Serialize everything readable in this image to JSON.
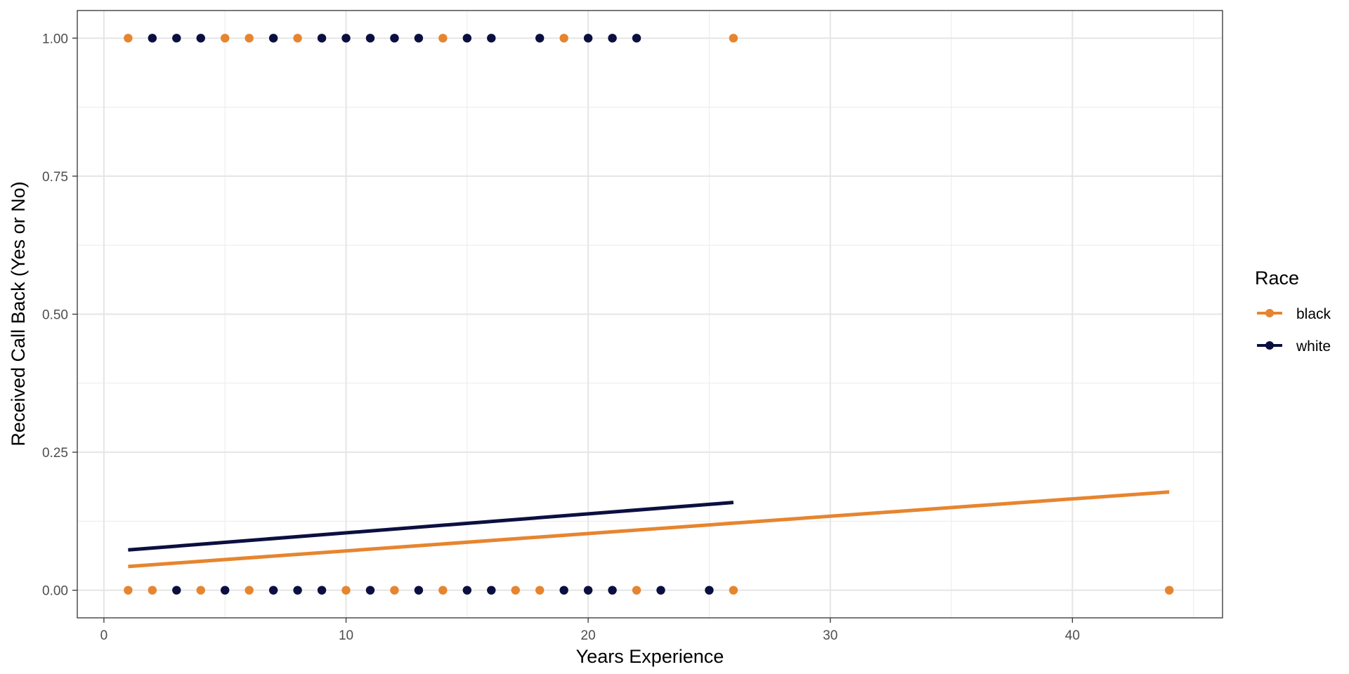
{
  "chart_data": {
    "type": "scatter",
    "title": "",
    "xlabel": "Years Experience",
    "ylabel": "Received Call Back (Yes or No)",
    "xlim": [
      -1.1,
      46.2
    ],
    "ylim": [
      -0.05,
      1.05
    ],
    "x_ticks": [
      0,
      10,
      20,
      30,
      40
    ],
    "x_tick_labels": [
      "0",
      "10",
      "20",
      "30",
      "40"
    ],
    "y_ticks": [
      0,
      0.25,
      0.5,
      0.75,
      1
    ],
    "y_tick_labels": [
      "0.00",
      "0.25",
      "0.50",
      "0.75",
      "1.00"
    ],
    "grid": true,
    "legend": {
      "title": "Race",
      "placement": "right"
    },
    "series": [
      {
        "name": "black",
        "color": "#E6852F",
        "points": [
          [
            1,
            1
          ],
          [
            5,
            1
          ],
          [
            6,
            1
          ],
          [
            8,
            1
          ],
          [
            14,
            1
          ],
          [
            19,
            1
          ],
          [
            26,
            1
          ],
          [
            1,
            0
          ],
          [
            2,
            0
          ],
          [
            4,
            0
          ],
          [
            6,
            0
          ],
          [
            10,
            0
          ],
          [
            12,
            0
          ],
          [
            14,
            0
          ],
          [
            17,
            0
          ],
          [
            18,
            0
          ],
          [
            22,
            0
          ],
          [
            26,
            0
          ],
          [
            44,
            0
          ]
        ],
        "fit_line": {
          "x": [
            1,
            44
          ],
          "y": [
            0.043,
            0.178
          ]
        }
      },
      {
        "name": "white",
        "color": "#0B0F40",
        "points": [
          [
            2,
            1
          ],
          [
            3,
            1
          ],
          [
            4,
            1
          ],
          [
            7,
            1
          ],
          [
            9,
            1
          ],
          [
            10,
            1
          ],
          [
            11,
            1
          ],
          [
            12,
            1
          ],
          [
            13,
            1
          ],
          [
            15,
            1
          ],
          [
            16,
            1
          ],
          [
            18,
            1
          ],
          [
            20,
            1
          ],
          [
            21,
            1
          ],
          [
            22,
            1
          ],
          [
            3,
            0
          ],
          [
            5,
            0
          ],
          [
            7,
            0
          ],
          [
            8,
            0
          ],
          [
            9,
            0
          ],
          [
            11,
            0
          ],
          [
            13,
            0
          ],
          [
            15,
            0
          ],
          [
            16,
            0
          ],
          [
            19,
            0
          ],
          [
            20,
            0
          ],
          [
            21,
            0
          ],
          [
            23,
            0
          ],
          [
            25,
            0
          ]
        ],
        "fit_line": {
          "x": [
            1,
            26
          ],
          "y": [
            0.073,
            0.159
          ]
        }
      }
    ]
  }
}
